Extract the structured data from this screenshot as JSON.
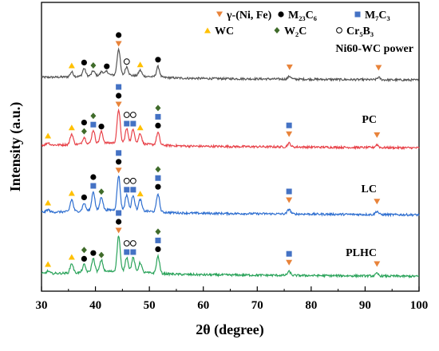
{
  "chart_data": {
    "type": "line",
    "xlabel": "2θ (degree)",
    "ylabel": "Intensity (a.u.)",
    "xlim": [
      30,
      100
    ],
    "x_ticks": [
      30,
      40,
      50,
      60,
      70,
      80,
      90,
      100
    ],
    "y_ticks_shown": false,
    "grid": false,
    "legend_position": "top-right",
    "legend": [
      {
        "marker": "triangle-down",
        "color": "#e8833a",
        "label": "γ-(Ni, Fe)"
      },
      {
        "marker": "circle-filled",
        "color": "#000000",
        "label": "M₂₃C₆"
      },
      {
        "marker": "square",
        "color": "#4472c4",
        "label": "M₇C₃"
      },
      {
        "marker": "triangle-up",
        "color": "#ffc000",
        "label": "WC"
      },
      {
        "marker": "diamond",
        "color": "#3f6b2a",
        "label": "W₂C"
      },
      {
        "marker": "circle-open",
        "color": "#000000",
        "label": "Cr₅B₃"
      }
    ],
    "series": [
      {
        "name": "Ni60-WC power",
        "color": "#555555",
        "offset": 3.0,
        "peaks": [
          [
            35.6,
            0.1
          ],
          [
            37.9,
            0.16
          ],
          [
            39.6,
            0.1
          ],
          [
            41.2,
            0.08
          ],
          [
            42.1,
            0.08
          ],
          [
            44.3,
            0.55
          ],
          [
            45.8,
            0.18
          ],
          [
            48.3,
            0.12
          ],
          [
            51.6,
            0.22
          ],
          [
            76.0,
            0.06
          ],
          [
            92.5,
            0.05
          ]
        ],
        "markers": [
          {
            "x": 35.6,
            "symbols": [
              "triangle-up"
            ]
          },
          {
            "x": 37.9,
            "symbols": [
              "circle-filled"
            ]
          },
          {
            "x": 39.6,
            "symbols": [
              "diamond"
            ]
          },
          {
            "x": 42.1,
            "symbols": [
              "circle-filled"
            ]
          },
          {
            "x": 44.3,
            "symbols": [
              "triangle-down",
              "circle-filled"
            ]
          },
          {
            "x": 45.8,
            "symbols": [
              "circle-open"
            ]
          },
          {
            "x": 48.3,
            "symbols": [
              "triangle-up"
            ]
          },
          {
            "x": 51.6,
            "symbols": [
              "circle-filled"
            ]
          },
          {
            "x": 76.0,
            "symbols": [
              "triangle-down"
            ]
          },
          {
            "x": 92.5,
            "symbols": [
              "triangle-down"
            ]
          }
        ]
      },
      {
        "name": "PC",
        "color": "#e8434a",
        "offset": 2.0,
        "peaks": [
          [
            31.2,
            0.05
          ],
          [
            35.6,
            0.22
          ],
          [
            37.9,
            0.14
          ],
          [
            39.6,
            0.28
          ],
          [
            41.1,
            0.24
          ],
          [
            44.3,
            0.7
          ],
          [
            45.8,
            0.3
          ],
          [
            47.0,
            0.3
          ],
          [
            48.3,
            0.22
          ],
          [
            51.6,
            0.26
          ],
          [
            75.9,
            0.08
          ],
          [
            92.2,
            0.06
          ]
        ],
        "markers": [
          {
            "x": 31.2,
            "symbols": [
              "triangle-up"
            ]
          },
          {
            "x": 35.6,
            "symbols": [
              "triangle-up"
            ]
          },
          {
            "x": 37.9,
            "symbols": [
              "diamond",
              "circle-filled"
            ]
          },
          {
            "x": 39.6,
            "symbols": [
              "square",
              "diamond"
            ]
          },
          {
            "x": 41.1,
            "symbols": [
              "circle-filled"
            ]
          },
          {
            "x": 44.3,
            "symbols": [
              "triangle-down",
              "circle-filled",
              "square"
            ]
          },
          {
            "x": 45.8,
            "symbols": [
              "square",
              "circle-open"
            ]
          },
          {
            "x": 47.0,
            "symbols": [
              "square",
              "circle-open"
            ]
          },
          {
            "x": 48.3,
            "symbols": [
              "triangle-up"
            ]
          },
          {
            "x": 51.6,
            "symbols": [
              "circle-filled",
              "square",
              "diamond"
            ]
          },
          {
            "x": 75.9,
            "symbols": [
              "triangle-down",
              "square"
            ]
          },
          {
            "x": 92.2,
            "symbols": [
              "triangle-down"
            ]
          }
        ]
      },
      {
        "name": "LC",
        "color": "#2f6fd0",
        "offset": 1.0,
        "peaks": [
          [
            31.2,
            0.05
          ],
          [
            35.6,
            0.25
          ],
          [
            37.9,
            0.16
          ],
          [
            39.6,
            0.4
          ],
          [
            41.1,
            0.28
          ],
          [
            44.3,
            0.72
          ],
          [
            45.8,
            0.32
          ],
          [
            47.0,
            0.32
          ],
          [
            48.3,
            0.24
          ],
          [
            51.6,
            0.38
          ],
          [
            75.9,
            0.1
          ],
          [
            92.2,
            0.07
          ]
        ],
        "markers": [
          {
            "x": 31.2,
            "symbols": [
              "triangle-up"
            ]
          },
          {
            "x": 35.6,
            "symbols": [
              "triangle-up"
            ]
          },
          {
            "x": 37.9,
            "symbols": [
              "circle-filled"
            ]
          },
          {
            "x": 39.6,
            "symbols": [
              "square",
              "circle-filled"
            ]
          },
          {
            "x": 41.1,
            "symbols": [
              "diamond"
            ]
          },
          {
            "x": 44.3,
            "symbols": [
              "triangle-down",
              "circle-filled",
              "square"
            ]
          },
          {
            "x": 45.8,
            "symbols": [
              "square",
              "circle-open"
            ]
          },
          {
            "x": 47.0,
            "symbols": [
              "square",
              "circle-open"
            ]
          },
          {
            "x": 48.3,
            "symbols": [
              "triangle-up"
            ]
          },
          {
            "x": 51.6,
            "symbols": [
              "circle-filled",
              "square",
              "diamond"
            ]
          },
          {
            "x": 75.9,
            "symbols": [
              "triangle-down",
              "square"
            ]
          },
          {
            "x": 92.2,
            "symbols": [
              "triangle-down"
            ]
          }
        ]
      },
      {
        "name": "PLHC",
        "color": "#2aa35a",
        "offset": 0.0,
        "peaks": [
          [
            31.2,
            0.05
          ],
          [
            35.6,
            0.2
          ],
          [
            37.9,
            0.16
          ],
          [
            39.6,
            0.28
          ],
          [
            41.1,
            0.24
          ],
          [
            44.3,
            0.75
          ],
          [
            45.8,
            0.3
          ],
          [
            47.0,
            0.3
          ],
          [
            48.3,
            0.2
          ],
          [
            51.6,
            0.36
          ],
          [
            75.9,
            0.08
          ],
          [
            92.2,
            0.05
          ]
        ],
        "markers": [
          {
            "x": 31.2,
            "symbols": [
              "triangle-up"
            ]
          },
          {
            "x": 35.6,
            "symbols": [
              "triangle-up"
            ]
          },
          {
            "x": 37.9,
            "symbols": [
              "circle-filled",
              "diamond"
            ]
          },
          {
            "x": 39.6,
            "symbols": [
              "circle-filled"
            ]
          },
          {
            "x": 41.1,
            "symbols": [
              "diamond"
            ]
          },
          {
            "x": 44.3,
            "symbols": [
              "triangle-down",
              "circle-filled",
              "square"
            ]
          },
          {
            "x": 45.8,
            "symbols": [
              "square",
              "circle-open"
            ]
          },
          {
            "x": 47.0,
            "symbols": [
              "square",
              "circle-open"
            ]
          },
          {
            "x": 51.6,
            "symbols": [
              "circle-filled",
              "square",
              "diamond"
            ]
          },
          {
            "x": 75.9,
            "symbols": [
              "triangle-down",
              "square"
            ]
          },
          {
            "x": 92.2,
            "symbols": [
              "triangle-down"
            ]
          }
        ]
      }
    ]
  }
}
